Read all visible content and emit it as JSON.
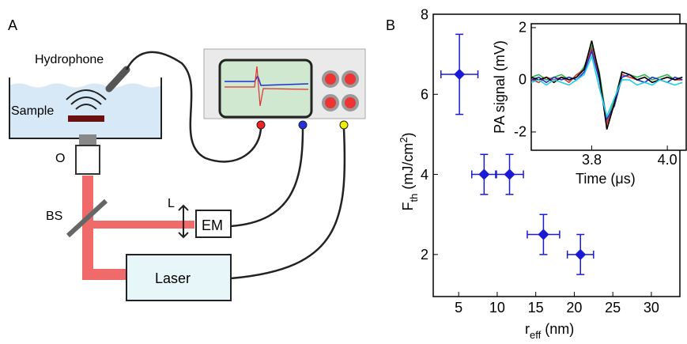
{
  "panel_labels": [
    "A",
    "B"
  ],
  "diagram": {
    "hydrophone": "Hydrophone",
    "sample": "Sample",
    "objective": "O",
    "beamsplitter": "BS",
    "lens": "L",
    "detector": "EM",
    "laser": "Laser"
  },
  "chart_data": [
    {
      "type": "scatter",
      "color": "#1a1ad6",
      "x": [
        5.1,
        8.3,
        11.6,
        16,
        20.8
      ],
      "values": [
        6.5,
        4,
        4,
        2.5,
        2
      ],
      "xerr": [
        2.4,
        1.6,
        1.8,
        2.1,
        1.7
      ],
      "yerr": [
        1,
        0.5,
        0.5,
        0.5,
        0.5
      ],
      "xlim": [
        1.7,
        33.7
      ],
      "ylim": [
        0.95,
        8
      ],
      "xticks": [
        5,
        10,
        15,
        20,
        25,
        30
      ],
      "yticks": [
        2,
        4,
        6,
        8
      ],
      "xlabel": {
        "main": "r",
        "sub": "eff",
        "unit": " (nm)"
      },
      "ylabel": {
        "main": "F",
        "sub": "th",
        "unit": " (mJ/cm",
        "sup": "2",
        "close": ")"
      }
    },
    {
      "type": "line",
      "x": [
        3.64,
        3.66,
        3.68,
        3.7,
        3.72,
        3.74,
        3.76,
        3.78,
        3.8,
        3.82,
        3.84,
        3.86,
        3.88,
        3.9,
        3.92,
        3.94,
        3.96,
        3.98,
        4.0,
        4.02,
        4.04
      ],
      "series": [
        {
          "color": "#2bb24c",
          "values": [
            0.1,
            0.2,
            0,
            0.1,
            0.2,
            0,
            0.1,
            0.5,
            1.3,
            0.3,
            -1.6,
            -0.8,
            0.3,
            0.2,
            0.1,
            0.2,
            0,
            0.1,
            0.2,
            0,
            0.1
          ]
        },
        {
          "color": "#e03030",
          "values": [
            0,
            -0.1,
            0.1,
            0,
            0.1,
            -0.1,
            0.2,
            0.4,
            1.2,
            0.1,
            -1.7,
            -0.9,
            0.2,
            0.1,
            0,
            0.1,
            -0.1,
            0,
            0.1,
            0,
            0
          ]
        },
        {
          "color": "#2030d0",
          "values": [
            0,
            0.1,
            -0.1,
            0.1,
            0,
            0.1,
            0,
            0.3,
            1.1,
            0,
            -1.5,
            -1.0,
            0.1,
            0.2,
            0,
            -0.1,
            0.1,
            0,
            -0.1,
            0.1,
            0
          ]
        },
        {
          "color": "#000000",
          "values": [
            0.1,
            0,
            0.1,
            -0.1,
            0.1,
            0,
            0.1,
            0.4,
            1.5,
            0.2,
            -1.9,
            -0.9,
            0.3,
            0.2,
            0,
            0.1,
            -0.1,
            0,
            0.1,
            0,
            0.1
          ]
        },
        {
          "color": "#20d0e0",
          "values": [
            -0.1,
            0,
            -0.2,
            0,
            -0.1,
            -0.2,
            0,
            0.2,
            0.9,
            -0.3,
            -1.4,
            -0.7,
            0,
            0,
            -0.2,
            -0.1,
            -0.2,
            0,
            -0.1,
            -0.2,
            -0.1
          ]
        }
      ],
      "xlim": [
        3.64,
        4.05
      ],
      "ylim": [
        -2.7,
        2.15
      ],
      "xticks": [
        3.8,
        {
          "value": 4,
          "label": "4.0"
        }
      ],
      "yticks": [
        -2,
        0,
        2
      ],
      "xlabel": {
        "main": "Time (",
        "greek": "μ",
        "unit": "s)"
      },
      "ylabel": "PA signal (mV)"
    }
  ]
}
